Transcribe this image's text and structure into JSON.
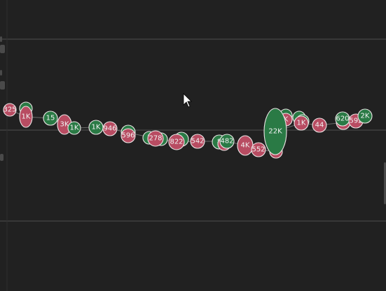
{
  "colors": {
    "background": "#212121",
    "gridline": "#474747",
    "red_bubble": "#b84c62",
    "green_bubble": "#2a7a45",
    "bubble_stroke": "#ece6e6",
    "text": "#f2f2f2"
  },
  "icons": {
    "cursor": "mouse-pointer-icon"
  },
  "bubbles": [
    {
      "label": "325",
      "color": "red"
    },
    {
      "label": "",
      "color": "green"
    },
    {
      "label": "1K",
      "color": "red"
    },
    {
      "label": "15",
      "color": "green"
    },
    {
      "label": "3K",
      "color": "red"
    },
    {
      "label": "1K",
      "color": "green"
    },
    {
      "label": "1K",
      "color": "green"
    },
    {
      "label": "946",
      "color": "red"
    },
    {
      "label": "",
      "color": "green"
    },
    {
      "label": "596",
      "color": "red"
    },
    {
      "label": "1",
      "color": "green"
    },
    {
      "label": "",
      "color": "green"
    },
    {
      "label": "278",
      "color": "red"
    },
    {
      "label": "",
      "color": "green"
    },
    {
      "label": "822",
      "color": "red"
    },
    {
      "label": "542",
      "color": "red"
    },
    {
      "label": "8",
      "color": "green"
    },
    {
      "label": "",
      "color": "red"
    },
    {
      "label": "482",
      "color": "green"
    },
    {
      "label": "4K",
      "color": "red"
    },
    {
      "label": "552",
      "color": "red"
    },
    {
      "label": "",
      "color": "red"
    },
    {
      "label": "",
      "color": "green"
    },
    {
      "label": "K",
      "color": "red"
    },
    {
      "label": "",
      "color": "green"
    },
    {
      "label": "22K",
      "color": "green"
    },
    {
      "label": "",
      "color": "green"
    },
    {
      "label": "1K",
      "color": "red"
    },
    {
      "label": "44",
      "color": "red"
    },
    {
      "label": "",
      "color": "red"
    },
    {
      "label": "620",
      "color": "green"
    },
    {
      "label": "592",
      "color": "red"
    },
    {
      "label": "2K",
      "color": "green"
    }
  ]
}
